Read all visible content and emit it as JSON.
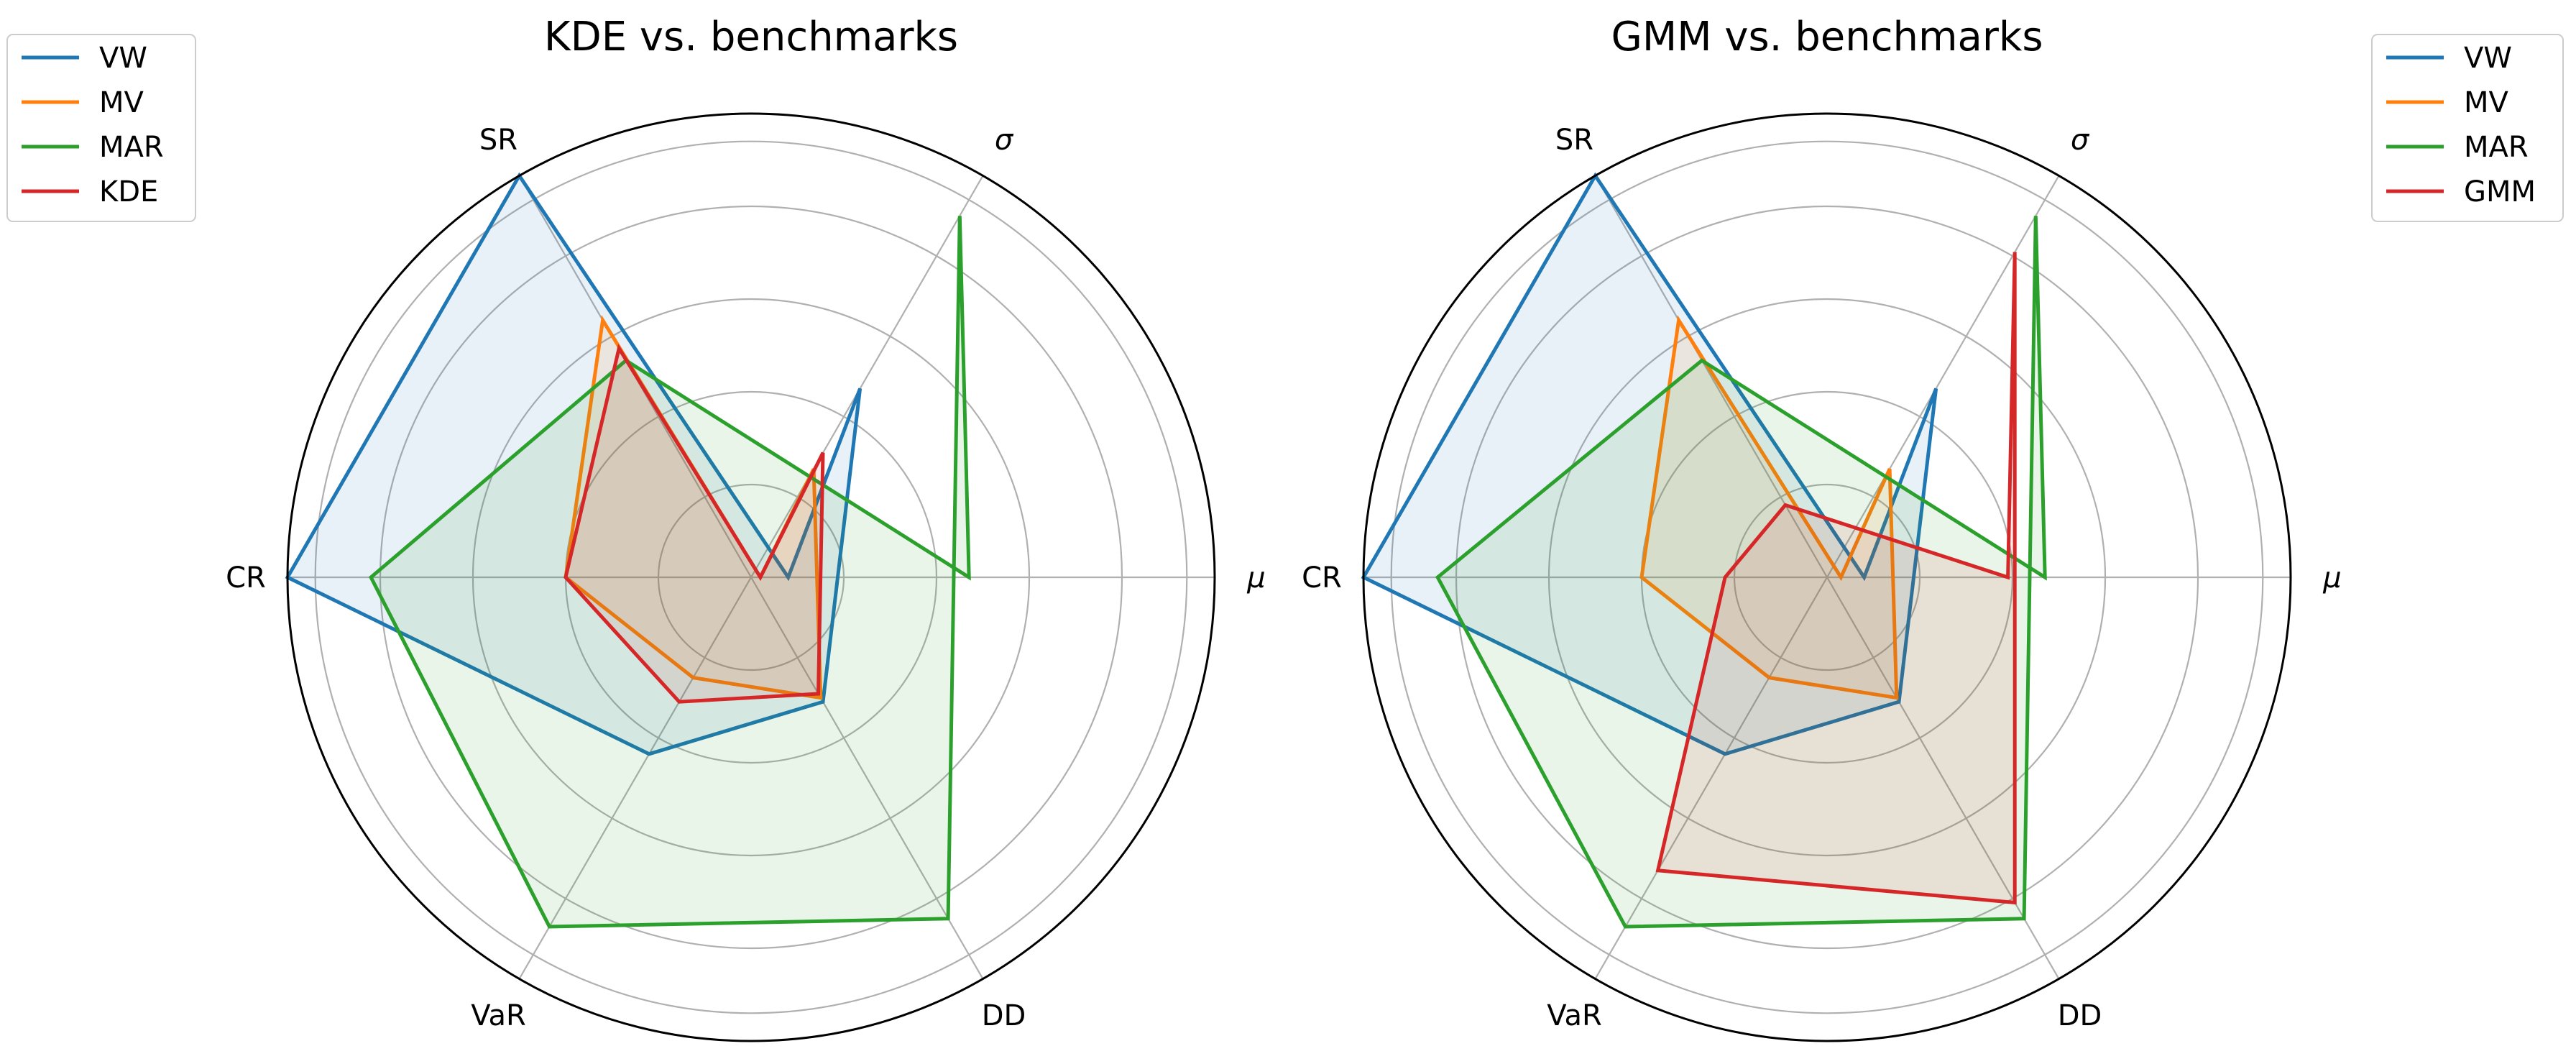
{
  "chart_data": [
    {
      "type": "radar",
      "title": "KDE vs. benchmarks",
      "axes": [
        "μ",
        "σ",
        "DD",
        "VaR",
        "CR",
        "SR"
      ],
      "r_range": [
        0,
        1
      ],
      "gridlines": [
        0.2,
        0.4,
        0.6,
        0.8,
        0.94
      ],
      "grid": true,
      "legend_placement": "top-left",
      "series": [
        {
          "name": "VW",
          "color": "#1f77b4",
          "values": [
            0.08,
            0.47,
            0.31,
            0.44,
            1.0,
            1.0
          ]
        },
        {
          "name": "MV",
          "color": "#ff7f0e",
          "values": [
            0.02,
            0.27,
            0.3,
            0.25,
            0.4,
            0.64
          ]
        },
        {
          "name": "MAR",
          "color": "#2ca02c",
          "values": [
            0.47,
            0.9,
            0.85,
            0.87,
            0.82,
            0.54
          ]
        },
        {
          "name": "KDE",
          "color": "#d62728",
          "values": [
            0.02,
            0.31,
            0.29,
            0.31,
            0.4,
            0.57
          ]
        }
      ]
    },
    {
      "type": "radar",
      "title": "GMM vs. benchmarks",
      "axes": [
        "μ",
        "σ",
        "DD",
        "VaR",
        "CR",
        "SR"
      ],
      "r_range": [
        0,
        1
      ],
      "gridlines": [
        0.2,
        0.4,
        0.6,
        0.8,
        0.94
      ],
      "grid": true,
      "legend_placement": "top-right",
      "series": [
        {
          "name": "VW",
          "color": "#1f77b4",
          "values": [
            0.08,
            0.47,
            0.31,
            0.44,
            1.0,
            1.0
          ]
        },
        {
          "name": "MV",
          "color": "#ff7f0e",
          "values": [
            0.03,
            0.27,
            0.3,
            0.25,
            0.4,
            0.64
          ]
        },
        {
          "name": "MAR",
          "color": "#2ca02c",
          "values": [
            0.47,
            0.9,
            0.85,
            0.87,
            0.84,
            0.54
          ]
        },
        {
          "name": "GMM",
          "color": "#d62728",
          "values": [
            0.39,
            0.81,
            0.81,
            0.73,
            0.22,
            0.18
          ]
        }
      ]
    }
  ]
}
